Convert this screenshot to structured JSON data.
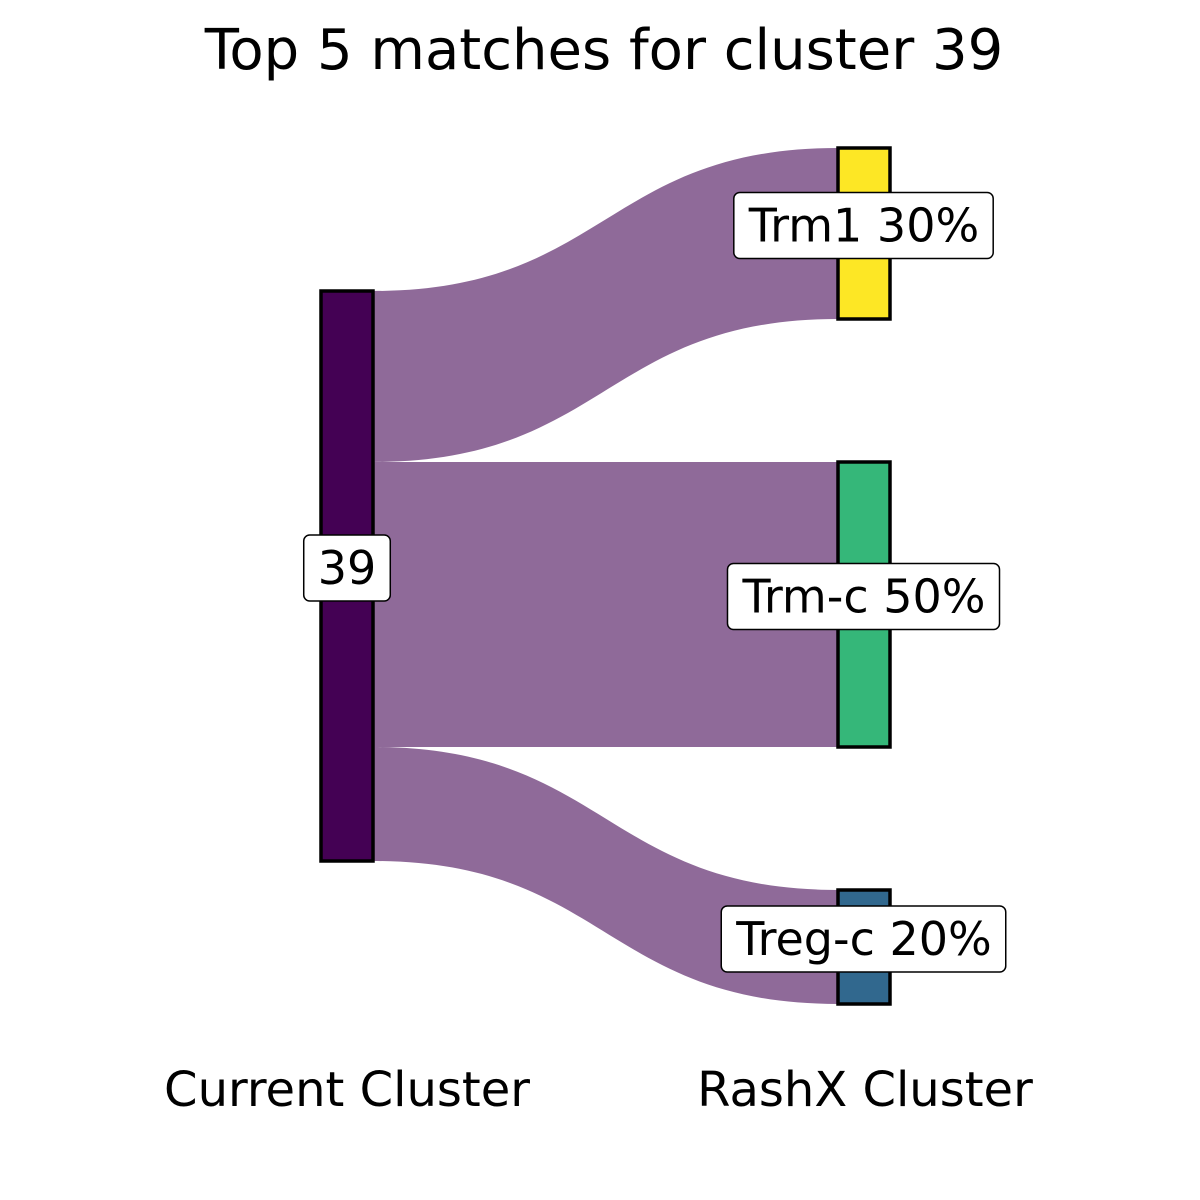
{
  "chart_data": {
    "type": "sankey",
    "title": "Top 5 matches for cluster 39",
    "axes": {
      "left_label": "Current Cluster",
      "right_label": "RashX Cluster"
    },
    "source": {
      "label": "39",
      "color": "#440154"
    },
    "targets": [
      {
        "name": "Trm1",
        "label": "Trm1 30%",
        "percent": 30,
        "color": "#FDE725"
      },
      {
        "name": "Trm-c",
        "label": "Trm-c 50%",
        "percent": 50,
        "color": "#35B779"
      },
      {
        "name": "Treg-c",
        "label": "Treg-c 20%",
        "percent": 20,
        "color": "#31688E"
      }
    ],
    "flow_color": "#8F6A99",
    "grid": false,
    "legend": "none"
  }
}
